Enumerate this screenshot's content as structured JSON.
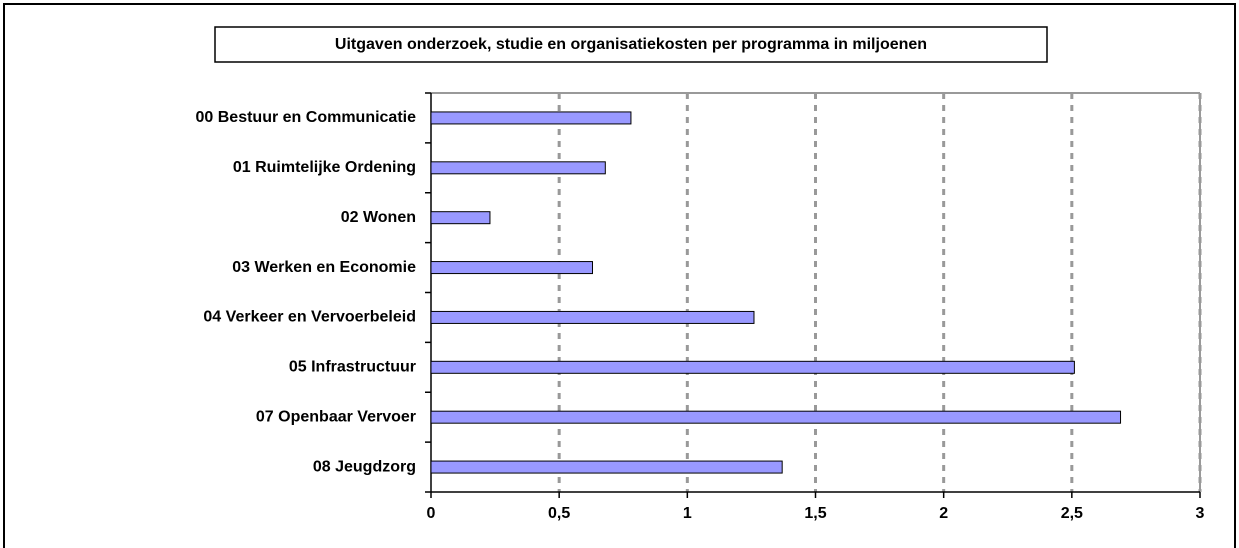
{
  "chart_data": {
    "type": "barh",
    "title": "Uitgaven onderzoek, studie en organisatiekosten per programma in miljoenen",
    "categories": [
      "00 Bestuur en Communicatie",
      "01 Ruimtelijke Ordening",
      "02 Wonen",
      "03 Werken en Economie",
      "04 Verkeer en Vervoerbeleid",
      "05 Infrastructuur",
      "07 Openbaar Vervoer",
      "08 Jeugdzorg"
    ],
    "values": [
      0.78,
      0.68,
      0.23,
      0.63,
      1.26,
      2.51,
      2.69,
      1.37
    ],
    "color": "#9999ff",
    "xlim": [
      0,
      3
    ],
    "xticks": [
      0,
      {
        "value": 0.5,
        "label": "0,5"
      },
      1,
      {
        "value": 1.5,
        "label": "1,5"
      },
      2,
      {
        "value": 2.5,
        "label": "2,5"
      },
      3
    ],
    "grid": true
  }
}
